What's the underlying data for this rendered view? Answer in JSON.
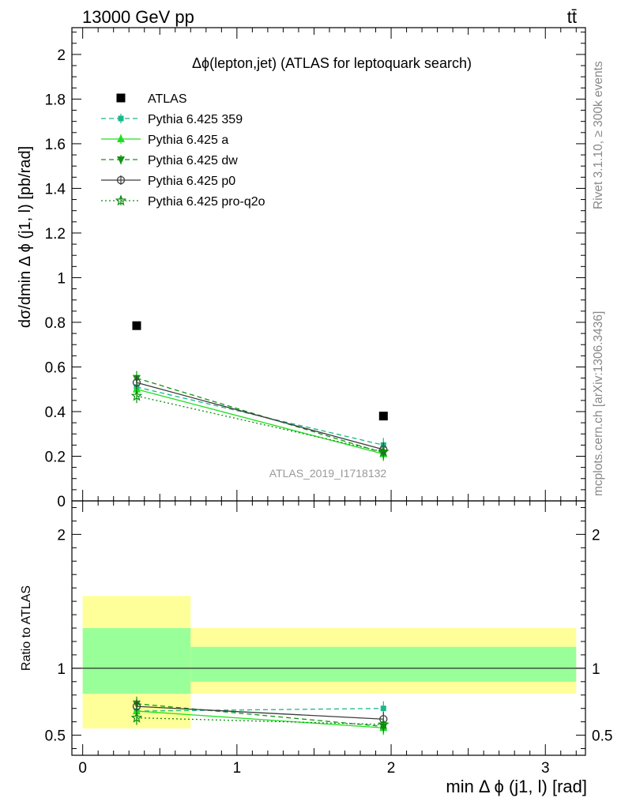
{
  "header": {
    "left": "13000 GeV pp",
    "right": "tt̄"
  },
  "side_labels": {
    "rivet": "Rivet 3.1.10, ≥ 300k events",
    "mcplots": "mcplots.cern.ch [arXiv:1306.3436]"
  },
  "colors": {
    "ATLAS": "#000000",
    "p359": "#19b78c",
    "pa": "#1ee01e",
    "pdw": "#0f960f",
    "pp0": "#3c3c3c",
    "pq2o": "#0c8c0c",
    "band_inner": "#99ff99",
    "band_outer": "#ffff99",
    "watermark": "#999999",
    "side_text": "#888888"
  },
  "chart_data": [
    {
      "type": "scatter",
      "panel": "main",
      "title": "Δϕ(lepton,jet) (ATLAS for leptoquark search)",
      "ylabel": "dσ/dmin Δ ϕ (j1, l) [pb/rad]",
      "watermark": "ATLAS_2019_I1718132",
      "xlim": [
        -0.07,
        3.26
      ],
      "ylim": [
        0,
        2.12
      ],
      "y_ticks": [
        0,
        0.2,
        0.4,
        0.6,
        0.8,
        1,
        1.2,
        1.4,
        1.6,
        1.8,
        2
      ],
      "y_tick_labels": [
        "0",
        "0.2",
        "0.4",
        "0.6",
        "0.8",
        "1",
        "1.2",
        "1.4",
        "1.6",
        "1.8",
        "2"
      ],
      "legend_position": "top-left",
      "series": [
        {
          "name": "ATLAS",
          "key": "ATLAS",
          "marker": "square",
          "line": "none",
          "x": [
            0.35,
            1.95
          ],
          "y": [
            0.785,
            0.38
          ]
        },
        {
          "name": "Pythia 6.425 359",
          "key": "p359",
          "marker": "smallsquare",
          "line": "dashed",
          "x": [
            0.35,
            1.95
          ],
          "y": [
            0.51,
            0.25
          ]
        },
        {
          "name": "Pythia 6.425 a",
          "key": "pa",
          "marker": "triangle-up",
          "line": "solid",
          "x": [
            0.35,
            1.95
          ],
          "y": [
            0.5,
            0.21
          ]
        },
        {
          "name": "Pythia 6.425 dw",
          "key": "pdw",
          "marker": "triangle-down",
          "line": "dashed",
          "x": [
            0.35,
            1.95
          ],
          "y": [
            0.55,
            0.215
          ]
        },
        {
          "name": "Pythia 6.425 p0",
          "key": "pp0",
          "marker": "circle",
          "line": "solid",
          "x": [
            0.35,
            1.95
          ],
          "y": [
            0.53,
            0.23
          ]
        },
        {
          "name": "Pythia 6.425 pro-q2o",
          "key": "pq2o",
          "marker": "star",
          "line": "dotted",
          "x": [
            0.35,
            1.95
          ],
          "y": [
            0.47,
            0.22
          ]
        }
      ]
    },
    {
      "type": "scatter",
      "panel": "ratio",
      "ylabel": "Ratio to ATLAS",
      "xlabel": "min Δ ϕ (j1, l) [rad]",
      "xlim": [
        -0.07,
        3.26
      ],
      "ylim": [
        0.35,
        2.25
      ],
      "y_ticks": [
        0.5,
        1,
        2
      ],
      "y_tick_labels": [
        "0.5",
        "1",
        "2"
      ],
      "x_ticks": [
        0,
        1,
        2,
        3
      ],
      "x_tick_labels": [
        "0",
        "1",
        "2",
        "3"
      ],
      "bands": [
        {
          "x": [
            0,
            0.7
          ],
          "inner": [
            0.81,
            1.3
          ],
          "outer": [
            0.55,
            1.54
          ]
        },
        {
          "x": [
            0.7,
            3.2
          ],
          "inner": [
            0.9,
            1.16
          ],
          "outer": [
            0.81,
            1.3
          ]
        }
      ],
      "series": [
        {
          "name": "Pythia 6.425 359",
          "key": "p359",
          "marker": "smallsquare",
          "line": "dashed",
          "x": [
            0.35,
            1.95
          ],
          "y": [
            0.68,
            0.7
          ]
        },
        {
          "name": "Pythia 6.425 a",
          "key": "pa",
          "marker": "triangle-up",
          "line": "solid",
          "x": [
            0.35,
            1.95
          ],
          "y": [
            0.68,
            0.555
          ]
        },
        {
          "name": "Pythia 6.425 dw",
          "key": "pdw",
          "marker": "triangle-down",
          "line": "dashed",
          "x": [
            0.35,
            1.95
          ],
          "y": [
            0.735,
            0.565
          ]
        },
        {
          "name": "Pythia 6.425 p0",
          "key": "pp0",
          "marker": "circle",
          "line": "solid",
          "x": [
            0.35,
            1.95
          ],
          "y": [
            0.715,
            0.62
          ]
        },
        {
          "name": "Pythia 6.425 pro-q2o",
          "key": "pq2o",
          "marker": "star",
          "line": "dotted",
          "x": [
            0.35,
            1.95
          ],
          "y": [
            0.63,
            0.58
          ]
        }
      ]
    }
  ]
}
